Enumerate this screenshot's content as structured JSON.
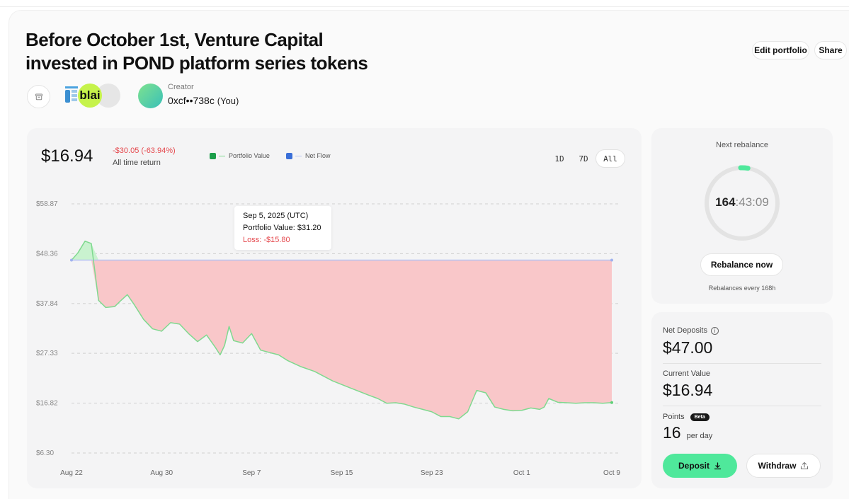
{
  "portfolio": {
    "title": "Before October 1st, Venture Capital invested in POND platform series tokens",
    "edit_label": "Edit portfolio",
    "share_label": "Share",
    "tokens_badge_text": "blai",
    "creator_label": "Creator",
    "creator_address": "0xcf••738c",
    "creator_you": "(You)"
  },
  "summary": {
    "value": "$16.94",
    "return_text": "-$30.05 (-63.94%)",
    "return_label": "All time return"
  },
  "legend": {
    "portfolio_value": "Portfolio Value",
    "net_flow": "Net Flow"
  },
  "range_tabs": [
    {
      "label": "1D",
      "active": false
    },
    {
      "label": "7D",
      "active": false
    },
    {
      "label": "All",
      "active": true
    }
  ],
  "tooltip": {
    "date": "Sep 5, 2025 (UTC)",
    "value": "Portfolio Value: $31.20",
    "loss": "Loss: -$15.80"
  },
  "colors": {
    "loss_fill": "#f9c7c9",
    "gain_fill": "#c9f2cf",
    "portfolio_line": "#7fd98f",
    "net_flow_line": "#b7c4f2",
    "deposit_button": "#4fe89b",
    "loss_text": "#e5484d"
  },
  "chart_data": {
    "type": "area",
    "y_ticks": [
      "$6.30",
      "$16.82",
      "$27.33",
      "$37.84",
      "$48.36",
      "$58.87"
    ],
    "y_tick_values": [
      6.3,
      16.82,
      27.33,
      37.84,
      48.36,
      58.87
    ],
    "x_ticks": [
      "Aug 22",
      "Aug 30",
      "Sep 7",
      "Sep 15",
      "Sep 23",
      "Oct 1",
      "Oct 9"
    ],
    "ylim": [
      6.3,
      58.87
    ],
    "xlim_days": [
      0,
      48
    ],
    "series": [
      {
        "name": "Portfolio Value",
        "points": [
          [
            0,
            47.0
          ],
          [
            0.7,
            48.5
          ],
          [
            1.5,
            51.0
          ],
          [
            2.2,
            50.5
          ],
          [
            3.0,
            38.5
          ],
          [
            3.8,
            37.0
          ],
          [
            4.8,
            37.2
          ],
          [
            5.5,
            38.5
          ],
          [
            6.2,
            39.7
          ],
          [
            7.0,
            37.5
          ],
          [
            8.0,
            34.5
          ],
          [
            9.0,
            32.5
          ],
          [
            10.0,
            32.0
          ],
          [
            11.0,
            33.8
          ],
          [
            12.0,
            33.5
          ],
          [
            13.0,
            31.5
          ],
          [
            14.0,
            29.8
          ],
          [
            15.0,
            31.2
          ],
          [
            16.0,
            28.5
          ],
          [
            16.5,
            27.0
          ],
          [
            17.0,
            29.0
          ],
          [
            17.5,
            33.0
          ],
          [
            18.0,
            30.0
          ],
          [
            19.0,
            29.5
          ],
          [
            20.0,
            31.5
          ],
          [
            21.0,
            28.0
          ],
          [
            22.0,
            27.5
          ],
          [
            23.0,
            27.0
          ],
          [
            24.0,
            25.8
          ],
          [
            25.5,
            24.5
          ],
          [
            27.0,
            23.5
          ],
          [
            29.0,
            21.5
          ],
          [
            31.0,
            20.0
          ],
          [
            33.0,
            18.5
          ],
          [
            34.0,
            17.8
          ],
          [
            35.0,
            16.8
          ],
          [
            36.0,
            16.9
          ],
          [
            37.0,
            16.6
          ],
          [
            38.0,
            16.0
          ],
          [
            39.0,
            15.5
          ],
          [
            40.0,
            15.0
          ],
          [
            41.0,
            14.0
          ],
          [
            42.0,
            14.0
          ],
          [
            43.0,
            13.5
          ],
          [
            44.0,
            15.0
          ],
          [
            45.0,
            19.5
          ],
          [
            46.0,
            19.0
          ],
          [
            47.0,
            16.0
          ],
          [
            48.0,
            15.5
          ],
          [
            49.0,
            15.2
          ],
          [
            50.0,
            15.3
          ],
          [
            51.0,
            15.8
          ],
          [
            52.0,
            15.5
          ],
          [
            52.5,
            16.0
          ],
          [
            53.0,
            17.8
          ],
          [
            54.0,
            17.0
          ],
          [
            55.0,
            16.9
          ],
          [
            56.0,
            16.8
          ],
          [
            57.0,
            16.9
          ],
          [
            58.0,
            16.9
          ],
          [
            59.0,
            16.8
          ],
          [
            60.0,
            16.94
          ]
        ]
      },
      {
        "name": "Net Flow",
        "points": [
          [
            0,
            47.0
          ],
          [
            60,
            47.0
          ]
        ]
      }
    ]
  },
  "rebalance": {
    "title": "Next rebalance",
    "hours": "164",
    "rest": ":43:09",
    "progress": 0.02,
    "button_label": "Rebalance now",
    "subtext": "Rebalances every 168h"
  },
  "stats": {
    "net_deposits_label": "Net Deposits",
    "net_deposits_value": "$47.00",
    "current_value_label": "Current Value",
    "current_value": "$16.94",
    "points_label": "Points",
    "beta_badge": "Beta",
    "points_value": "16",
    "points_unit": "per day",
    "deposit_label": "Deposit",
    "withdraw_label": "Withdraw"
  }
}
